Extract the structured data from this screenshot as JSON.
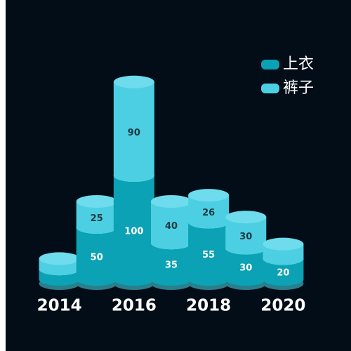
{
  "chart_data": {
    "type": "cylinder-stack",
    "categories": [
      "2014",
      null,
      "2016",
      null,
      "2018",
      null,
      "2020"
    ],
    "series": [
      {
        "name": "上衣",
        "color": "#0aa2b4",
        "top_color": "#9ef0fa",
        "label_color": "#ffffff",
        "values": [
          10,
          50,
          100,
          35,
          55,
          30,
          20
        ]
      },
      {
        "name": "裤子",
        "color": "#4ccfe3",
        "top_color": "#6edcec",
        "label_color": "#1d3a40",
        "values": [
          10,
          25,
          90,
          40,
          26,
          30,
          14
        ]
      }
    ],
    "ylim": [
      0,
      200
    ],
    "legend": "top-right"
  }
}
